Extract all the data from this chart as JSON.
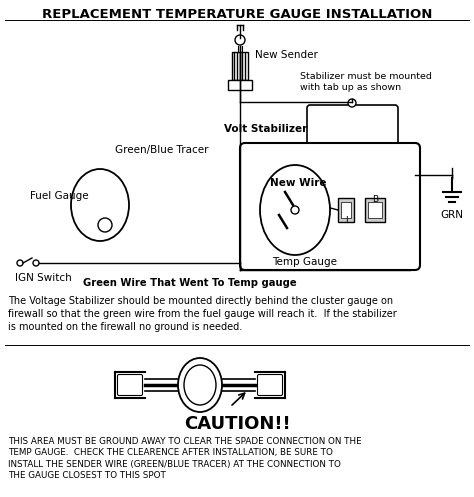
{
  "title": "REPLACEMENT TEMPERATURE GAUGE INSTALLATION",
  "bg_color": "#ffffff",
  "title_fontsize": 9.5,
  "body_text": "The Voltage Stabilizer should be mounted directly behind the cluster gauge on\nfirewall so that the green wire from the fuel gauge will reach it.  If the stabilizer\nis mounted on the firewall no ground is needed.",
  "caution_title": "CAUTION!!",
  "caution_body": "THIS AREA MUST BE GROUND AWAY TO CLEAR THE SPADE CONNECTION ON THE\nTEMP GAUGE.  CHECK THE CLEARENCE AFTER INSTALLATION, BE SURE TO\nINSTALL THE SENDER WIRE (GREEN/BLUE TRACER) AT THE CONNECTION TO\nTHE GAUGE CLOSEST TO THIS SPOT",
  "labels": {
    "new_sender": "New Sender",
    "stabilizer_note": "Stabilizer must be mounted\nwith tab up as shown",
    "green_blue_tracer": "Green/Blue Tracer",
    "volt_stabilizer": "Volt Stabilizer",
    "new_wire": "New Wire",
    "fuel_gauge": "Fuel Gauge",
    "temp_gauge": "Temp Gauge",
    "ign_switch": "IGN Switch",
    "green_wire": "Green Wire That Went To Temp gauge",
    "grn": "GRN",
    "I": "I",
    "B": "B"
  }
}
